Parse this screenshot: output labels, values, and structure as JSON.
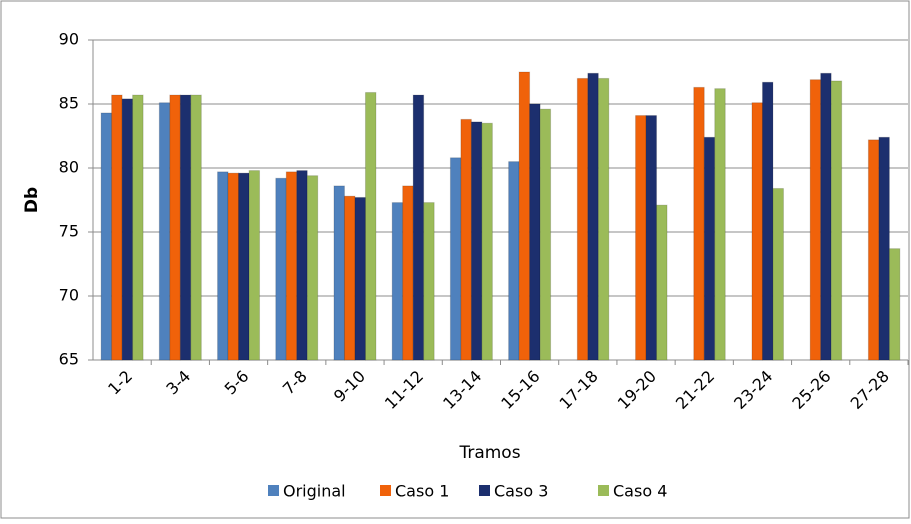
{
  "chart_data": {
    "type": "bar",
    "y_label": "Db",
    "x_label": "Tramos",
    "categories": [
      "1-2",
      "3-4",
      "5-6",
      "7-8",
      "9-10",
      "11-12",
      "13-14",
      "15-16",
      "17-18",
      "19-20",
      "21-22",
      "23-24",
      "25-26",
      "27-28"
    ],
    "series": [
      {
        "name": "Original",
        "color": "#4f81bd",
        "values": [
          84.3,
          85.1,
          79.7,
          79.2,
          78.6,
          77.3,
          80.8,
          80.5,
          null,
          null,
          null,
          null,
          null,
          null
        ]
      },
      {
        "name": "Caso 1",
        "color": "#f0620a",
        "values": [
          85.7,
          85.7,
          79.6,
          79.7,
          77.8,
          78.6,
          83.8,
          87.5,
          87.0,
          84.1,
          86.3,
          85.1,
          86.9,
          82.2
        ]
      },
      {
        "name": "Caso 3",
        "color": "#1c2f6e",
        "values": [
          85.4,
          85.7,
          79.6,
          79.8,
          77.7,
          85.7,
          83.6,
          85.0,
          87.4,
          84.1,
          82.4,
          86.7,
          87.4,
          82.4
        ]
      },
      {
        "name": "Caso 4",
        "color": "#9bbb59",
        "values": [
          85.7,
          85.7,
          79.8,
          79.4,
          85.9,
          77.3,
          83.5,
          84.6,
          87.0,
          77.1,
          86.2,
          78.4,
          86.8,
          73.7
        ]
      }
    ],
    "ylim": [
      65,
      90
    ],
    "yticks": [
      65,
      70,
      75,
      80,
      85,
      90
    ],
    "grid": true,
    "legend": "bottom"
  }
}
